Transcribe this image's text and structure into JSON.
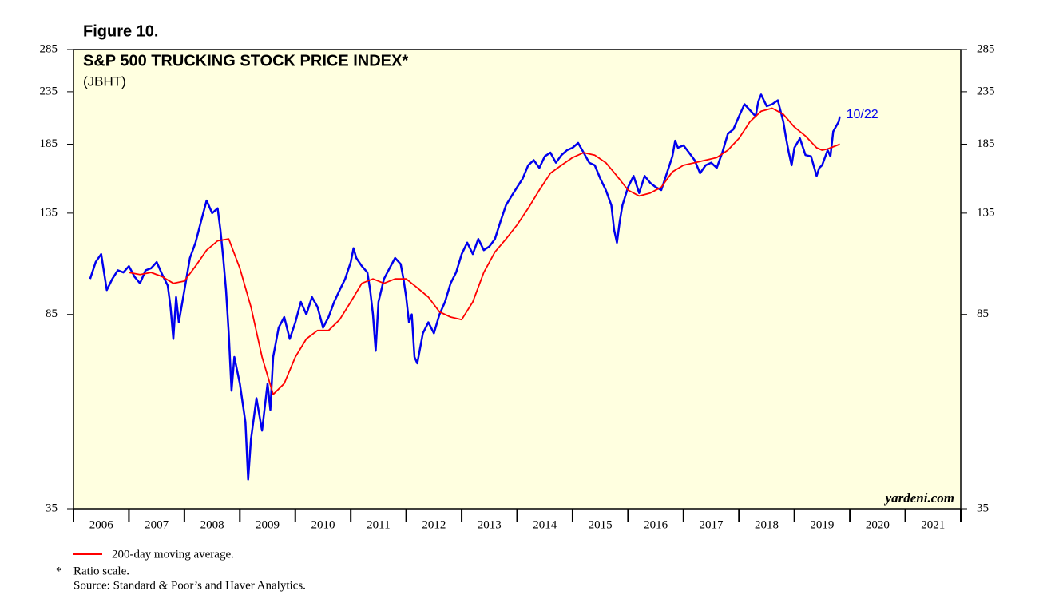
{
  "chart_data": {
    "type": "line",
    "figure_label": "Figure 10.",
    "title": "S&P 500 TRUCKING STOCK PRICE INDEX*",
    "subtitle": "(JBHT)",
    "annotation": "10/22",
    "watermark": "yardeni.com",
    "notes": [
      "*",
      "Ratio scale.",
      "Source: Standard & Poor’s and Haver Analytics."
    ],
    "log_scale": true,
    "background": "#ffffe0",
    "ylim": [
      35,
      285
    ],
    "yticks": [
      35,
      85,
      135,
      185,
      235,
      285
    ],
    "xlim": [
      2006,
      2022
    ],
    "xticks": [
      2006,
      2007,
      2008,
      2009,
      2010,
      2011,
      2012,
      2013,
      2014,
      2015,
      2016,
      2017,
      2018,
      2019,
      2020,
      2021,
      2022
    ],
    "xtick_labels": [
      "2006",
      "2007",
      "2008",
      "2009",
      "2010",
      "2011",
      "2012",
      "2013",
      "2014",
      "2015",
      "2016",
      "2017",
      "2018",
      "2019",
      "2020",
      "2021"
    ],
    "series": [
      {
        "color": "#0000ee",
        "x": [
          2006.3,
          2006.4,
          2006.5,
          2006.6,
          2006.7,
          2006.8,
          2006.9,
          2007.0,
          2007.1,
          2007.2,
          2007.3,
          2007.4,
          2007.5,
          2007.6,
          2007.7,
          2007.75,
          2007.8,
          2007.85,
          2007.9,
          2008.0,
          2008.1,
          2008.2,
          2008.3,
          2008.4,
          2008.5,
          2008.6,
          2008.65,
          2008.7,
          2008.75,
          2008.8,
          2008.85,
          2008.9,
          2009.0,
          2009.1,
          2009.15,
          2009.2,
          2009.3,
          2009.4,
          2009.5,
          2009.55,
          2009.6,
          2009.7,
          2009.8,
          2009.9,
          2010.0,
          2010.1,
          2010.2,
          2010.3,
          2010.4,
          2010.5,
          2010.6,
          2010.7,
          2010.8,
          2010.9,
          2011.0,
          2011.05,
          2011.1,
          2011.2,
          2011.3,
          2011.35,
          2011.4,
          2011.45,
          2011.5,
          2011.6,
          2011.7,
          2011.8,
          2011.9,
          2011.95,
          2012.0,
          2012.05,
          2012.1,
          2012.15,
          2012.2,
          2012.3,
          2012.4,
          2012.5,
          2012.6,
          2012.7,
          2012.8,
          2012.9,
          2013.0,
          2013.1,
          2013.2,
          2013.3,
          2013.4,
          2013.5,
          2013.6,
          2013.7,
          2013.8,
          2013.9,
          2014.0,
          2014.1,
          2014.2,
          2014.3,
          2014.4,
          2014.5,
          2014.6,
          2014.7,
          2014.8,
          2014.9,
          2015.0,
          2015.1,
          2015.2,
          2015.3,
          2015.4,
          2015.5,
          2015.6,
          2015.7,
          2015.75,
          2015.8,
          2015.85,
          2015.9,
          2016.0,
          2016.1,
          2016.2,
          2016.3,
          2016.4,
          2016.5,
          2016.6,
          2016.7,
          2016.8,
          2016.85,
          2016.9,
          2017.0,
          2017.1,
          2017.2,
          2017.3,
          2017.4,
          2017.5,
          2017.6,
          2017.7,
          2017.8,
          2017.9,
          2018.0,
          2018.1,
          2018.2,
          2018.3,
          2018.35,
          2018.4,
          2018.5,
          2018.6,
          2018.7,
          2018.8,
          2018.85,
          2018.9,
          2018.95,
          2019.0,
          2019.1,
          2019.2,
          2019.3,
          2019.4,
          2019.45,
          2019.5,
          2019.6,
          2019.65,
          2019.7,
          2019.8,
          2019.82
        ],
        "values": [
          100,
          108,
          112,
          95,
          100,
          104,
          103,
          106,
          101,
          98,
          104,
          105,
          108,
          102,
          97,
          88,
          76,
          92,
          82,
          95,
          110,
          118,
          130,
          143,
          135,
          138,
          125,
          110,
          95,
          78,
          60,
          70,
          62,
          52,
          40,
          48,
          58,
          50,
          62,
          55,
          70,
          80,
          84,
          76,
          82,
          90,
          85,
          92,
          88,
          80,
          84,
          90,
          95,
          100,
          108,
          115,
          110,
          106,
          103,
          95,
          85,
          72,
          90,
          100,
          105,
          110,
          107,
          100,
          92,
          82,
          85,
          70,
          68,
          78,
          82,
          78,
          85,
          90,
          98,
          103,
          112,
          118,
          112,
          120,
          114,
          116,
          120,
          130,
          140,
          146,
          152,
          158,
          168,
          172,
          166,
          175,
          178,
          170,
          176,
          180,
          182,
          186,
          178,
          170,
          168,
          158,
          150,
          140,
          125,
          118,
          130,
          140,
          152,
          160,
          148,
          160,
          155,
          152,
          150,
          162,
          175,
          188,
          182,
          184,
          178,
          172,
          162,
          168,
          170,
          166,
          178,
          194,
          198,
          210,
          222,
          216,
          210,
          225,
          232,
          220,
          222,
          226,
          205,
          190,
          178,
          168,
          182,
          190,
          176,
          175,
          160,
          166,
          168,
          180,
          175,
          196,
          205,
          210
        ]
      },
      {
        "name": "200-day moving average.",
        "color": "#ff0000",
        "x": [
          2007.0,
          2007.2,
          2007.4,
          2007.6,
          2007.8,
          2008.0,
          2008.2,
          2008.4,
          2008.6,
          2008.8,
          2009.0,
          2009.2,
          2009.4,
          2009.6,
          2009.8,
          2010.0,
          2010.2,
          2010.4,
          2010.6,
          2010.8,
          2011.0,
          2011.2,
          2011.4,
          2011.6,
          2011.8,
          2012.0,
          2012.2,
          2012.4,
          2012.6,
          2012.8,
          2013.0,
          2013.2,
          2013.4,
          2013.6,
          2013.8,
          2014.0,
          2014.2,
          2014.4,
          2014.6,
          2014.8,
          2015.0,
          2015.2,
          2015.4,
          2015.6,
          2015.8,
          2016.0,
          2016.2,
          2016.4,
          2016.6,
          2016.8,
          2017.0,
          2017.2,
          2017.4,
          2017.6,
          2017.8,
          2018.0,
          2018.2,
          2018.4,
          2018.6,
          2018.8,
          2019.0,
          2019.2,
          2019.4,
          2019.5,
          2019.6,
          2019.82
        ],
        "values": [
          103,
          102,
          103,
          101,
          98,
          99,
          106,
          114,
          119,
          120,
          105,
          88,
          70,
          59,
          62,
          70,
          76,
          79,
          79,
          83,
          90,
          98,
          100,
          98,
          100,
          100,
          96,
          92,
          86,
          84,
          83,
          90,
          103,
          113,
          120,
          128,
          138,
          150,
          162,
          168,
          174,
          178,
          176,
          170,
          160,
          150,
          146,
          148,
          152,
          163,
          168,
          170,
          172,
          174,
          180,
          190,
          205,
          215,
          218,
          212,
          200,
          192,
          182,
          180,
          181,
          185
        ]
      }
    ]
  }
}
